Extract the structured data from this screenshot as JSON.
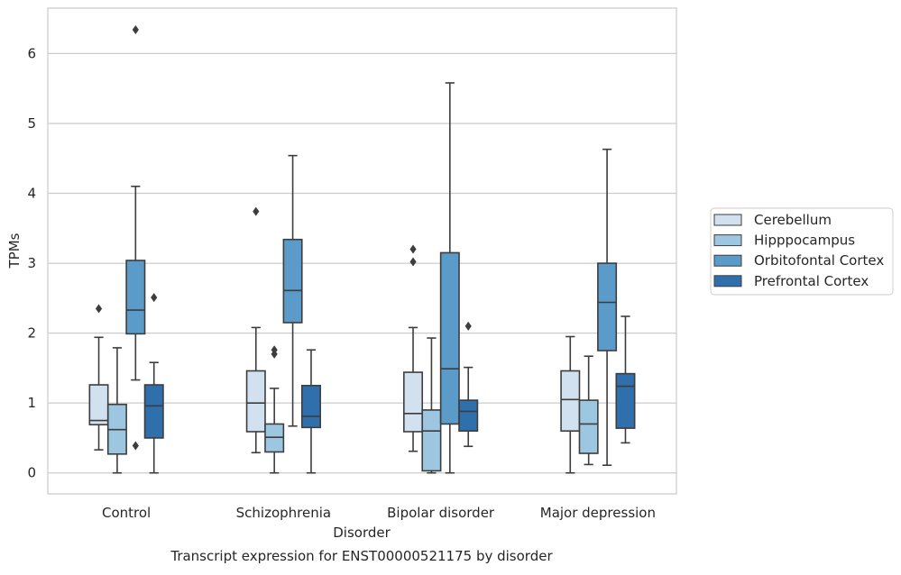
{
  "chart_data": {
    "type": "box",
    "title": "Transcript expression for ENST00000521175 by disorder",
    "xlabel": "Disorder",
    "ylabel": "TPMs",
    "ylim": [
      -0.3,
      6.65
    ],
    "yticks": [
      0,
      1,
      2,
      3,
      4,
      5,
      6
    ],
    "categories": [
      "Control",
      "Schizophrenia",
      "Bipolar disorder",
      "Major depression"
    ],
    "legend_position": "right",
    "grid": "horizontal",
    "series": [
      {
        "name": "Cerebellum",
        "color": "#d1e1f0",
        "boxes": [
          {
            "whisker_low": 0.33,
            "q1": 0.69,
            "median": 0.75,
            "q3": 1.26,
            "whisker_high": 1.94,
            "outliers": [
              2.35
            ]
          },
          {
            "whisker_low": 0.29,
            "q1": 0.59,
            "median": 1.0,
            "q3": 1.46,
            "whisker_high": 2.08,
            "outliers": [
              3.74
            ]
          },
          {
            "whisker_low": 0.31,
            "q1": 0.59,
            "median": 0.85,
            "q3": 1.44,
            "whisker_high": 2.08,
            "outliers": [
              3.02,
              3.2
            ]
          },
          {
            "whisker_low": 0.0,
            "q1": 0.6,
            "median": 1.05,
            "q3": 1.46,
            "whisker_high": 1.95,
            "outliers": []
          }
        ]
      },
      {
        "name": "Hipppocampus",
        "color": "#9dc6e0",
        "boxes": [
          {
            "whisker_low": 0.0,
            "q1": 0.27,
            "median": 0.62,
            "q3": 0.98,
            "whisker_high": 1.79,
            "outliers": []
          },
          {
            "whisker_low": 0.0,
            "q1": 0.3,
            "median": 0.51,
            "q3": 0.7,
            "whisker_high": 1.21,
            "outliers": [
              1.7,
              1.76
            ]
          },
          {
            "whisker_low": 0.0,
            "q1": 0.03,
            "median": 0.6,
            "q3": 0.9,
            "whisker_high": 1.93,
            "outliers": []
          },
          {
            "whisker_low": 0.12,
            "q1": 0.28,
            "median": 0.7,
            "q3": 1.04,
            "whisker_high": 1.67,
            "outliers": []
          }
        ]
      },
      {
        "name": "Orbitofontal Cortex",
        "color": "#5a9bc9",
        "boxes": [
          {
            "whisker_low": 1.33,
            "q1": 1.99,
            "median": 2.33,
            "q3": 3.04,
            "whisker_high": 4.1,
            "outliers": [
              6.34,
              0.39
            ]
          },
          {
            "whisker_low": 0.67,
            "q1": 2.15,
            "median": 2.61,
            "q3": 3.34,
            "whisker_high": 4.54,
            "outliers": []
          },
          {
            "whisker_low": 0.0,
            "q1": 0.7,
            "median": 1.49,
            "q3": 3.15,
            "whisker_high": 5.58,
            "outliers": []
          },
          {
            "whisker_low": 0.11,
            "q1": 1.75,
            "median": 2.44,
            "q3": 3.0,
            "whisker_high": 4.63,
            "outliers": []
          }
        ]
      },
      {
        "name": "Prefrontal Cortex",
        "color": "#2f6fab",
        "boxes": [
          {
            "whisker_low": 0.0,
            "q1": 0.5,
            "median": 0.96,
            "q3": 1.26,
            "whisker_high": 1.58,
            "outliers": [
              2.51
            ]
          },
          {
            "whisker_low": 0.0,
            "q1": 0.65,
            "median": 0.81,
            "q3": 1.25,
            "whisker_high": 1.76,
            "outliers": []
          },
          {
            "whisker_low": 0.38,
            "q1": 0.6,
            "median": 0.88,
            "q3": 1.04,
            "whisker_high": 1.51,
            "outliers": [
              2.1
            ]
          },
          {
            "whisker_low": 0.43,
            "q1": 0.64,
            "median": 1.24,
            "q3": 1.42,
            "whisker_high": 2.24,
            "outliers": []
          }
        ]
      }
    ]
  }
}
